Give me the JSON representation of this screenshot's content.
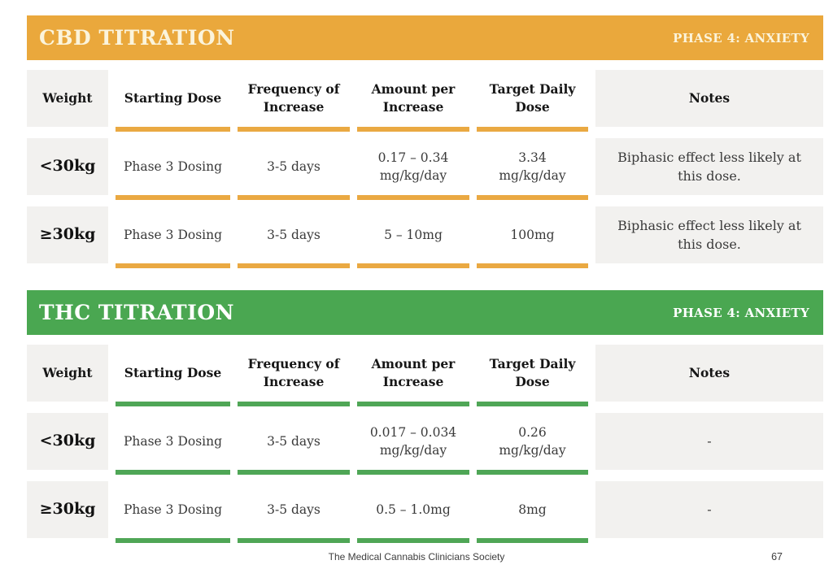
{
  "colors": {
    "cbd_accent": "#EAA83C",
    "thc_accent": "#4AA751",
    "cell_gray": "#F2F1EF",
    "cbd_banner_text": "#FBF4DC",
    "thc_banner_text": "#FFFFFF"
  },
  "tables": [
    {
      "title": "CBD TITRATION",
      "phase": "PHASE 4: ANXIETY",
      "columns": [
        "Weight",
        "Starting Dose",
        "Frequency of Increase",
        "Amount per Increase",
        "Target Daily Dose",
        "Notes"
      ],
      "rows": [
        {
          "weight": "<30kg",
          "starting_dose": "Phase 3 Dosing",
          "frequency": "3-5 days",
          "amount": "0.17 – 0.34 mg/kg/day",
          "target": "3.34 mg/kg/day",
          "notes": "Biphasic effect less likely at this dose."
        },
        {
          "weight": "≥30kg",
          "starting_dose": "Phase 3 Dosing",
          "frequency": "3-5 days",
          "amount": "5 – 10mg",
          "target": "100mg",
          "notes": "Biphasic effect less likely at this dose."
        }
      ]
    },
    {
      "title": "THC TITRATION",
      "phase": "PHASE 4: ANXIETY",
      "columns": [
        "Weight",
        "Starting Dose",
        "Frequency of Increase",
        "Amount per Increase",
        "Target Daily Dose",
        "Notes"
      ],
      "rows": [
        {
          "weight": "<30kg",
          "starting_dose": "Phase 3 Dosing",
          "frequency": "3-5 days",
          "amount": "0.017 – 0.034 mg/kg/day",
          "target": "0.26 mg/kg/day",
          "notes": "-"
        },
        {
          "weight": "≥30kg",
          "starting_dose": "Phase 3 Dosing",
          "frequency": "3-5 days",
          "amount": "0.5 – 1.0mg",
          "target": "8mg",
          "notes": "-"
        }
      ]
    }
  ],
  "footer": {
    "org": "The Medical Cannabis Clinicians Society",
    "page_number": "67"
  }
}
